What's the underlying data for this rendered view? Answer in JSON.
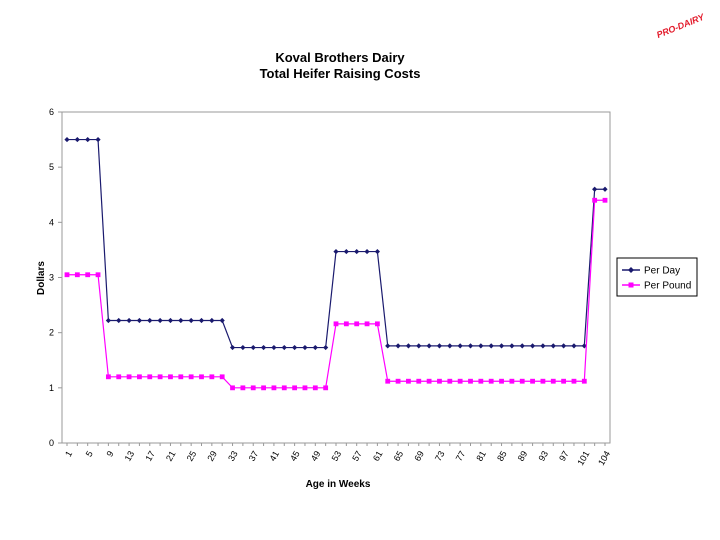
{
  "logo": {
    "text": "PRO-DAIRY",
    "color": "#e31b2b"
  },
  "chart_data": {
    "type": "line",
    "title": "Koval Brothers Dairy",
    "subtitle": "Total Heifer Raising Costs",
    "xlabel": "Age in Weeks",
    "ylabel": "Dollars",
    "ylim": [
      0,
      6
    ],
    "yticks": [
      "0",
      "1",
      "2",
      "3",
      "4",
      "5",
      "6"
    ],
    "x": [
      1,
      3,
      5,
      7,
      9,
      11,
      13,
      15,
      17,
      19,
      21,
      23,
      25,
      27,
      29,
      31,
      33,
      35,
      37,
      39,
      41,
      43,
      45,
      47,
      49,
      51,
      53,
      55,
      57,
      59,
      61,
      63,
      65,
      67,
      69,
      71,
      73,
      75,
      77,
      79,
      81,
      83,
      85,
      87,
      89,
      91,
      93,
      95,
      97,
      99,
      101,
      103,
      104
    ],
    "xtick_labels": [
      "1",
      "5",
      "9",
      "13",
      "17",
      "21",
      "25",
      "29",
      "33",
      "37",
      "41",
      "45",
      "49",
      "53",
      "57",
      "61",
      "65",
      "69",
      "73",
      "77",
      "81",
      "85",
      "89",
      "93",
      "97",
      "101",
      "104"
    ],
    "grid": {
      "horizontal": false,
      "vertical": false
    },
    "legend": "right",
    "series": [
      {
        "name": "Per Day",
        "color": "#1a1a6e",
        "marker": "diamond",
        "values": [
          5.5,
          5.5,
          5.5,
          5.5,
          2.22,
          2.22,
          2.22,
          2.22,
          2.22,
          2.22,
          2.22,
          2.22,
          2.22,
          2.22,
          2.22,
          2.22,
          1.73,
          1.73,
          1.73,
          1.73,
          1.73,
          1.73,
          1.73,
          1.73,
          1.73,
          1.73,
          3.47,
          3.47,
          3.47,
          3.47,
          3.47,
          1.76,
          1.76,
          1.76,
          1.76,
          1.76,
          1.76,
          1.76,
          1.76,
          1.76,
          1.76,
          1.76,
          1.76,
          1.76,
          1.76,
          1.76,
          1.76,
          1.76,
          1.76,
          1.76,
          1.76,
          4.6,
          4.6
        ]
      },
      {
        "name": "Per Pound",
        "color": "#ff00ff",
        "marker": "square",
        "values": [
          3.05,
          3.05,
          3.05,
          3.05,
          1.2,
          1.2,
          1.2,
          1.2,
          1.2,
          1.2,
          1.2,
          1.2,
          1.2,
          1.2,
          1.2,
          1.2,
          1.0,
          1.0,
          1.0,
          1.0,
          1.0,
          1.0,
          1.0,
          1.0,
          1.0,
          1.0,
          2.16,
          2.16,
          2.16,
          2.16,
          2.16,
          1.12,
          1.12,
          1.12,
          1.12,
          1.12,
          1.12,
          1.12,
          1.12,
          1.12,
          1.12,
          1.12,
          1.12,
          1.12,
          1.12,
          1.12,
          1.12,
          1.12,
          1.12,
          1.12,
          1.12,
          4.4,
          4.4
        ]
      }
    ]
  }
}
